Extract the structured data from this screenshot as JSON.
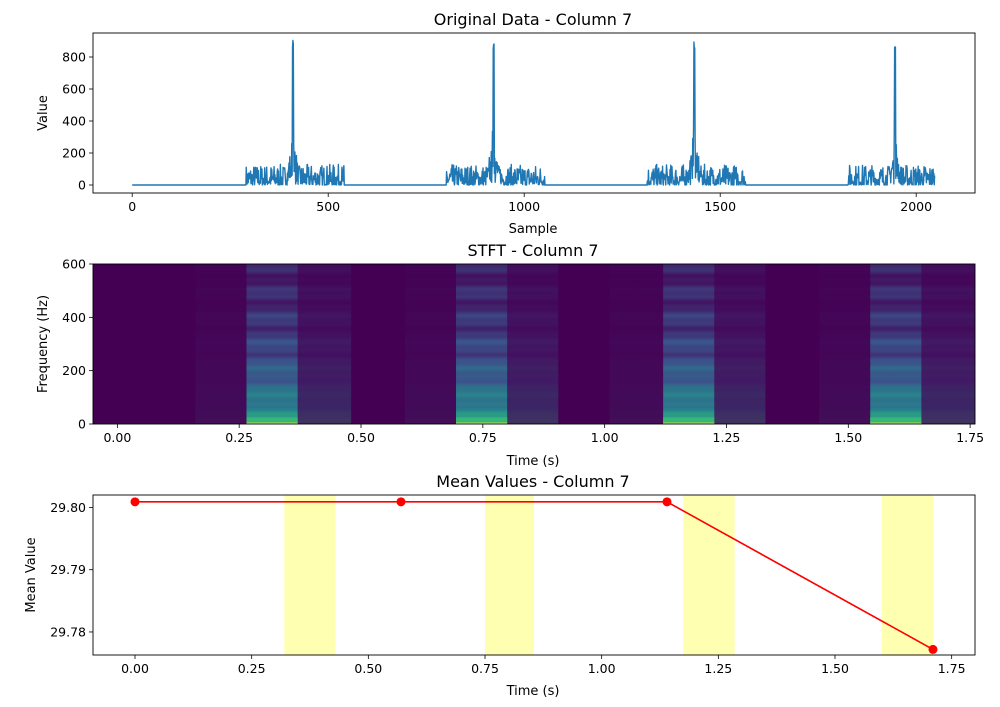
{
  "chart_data": [
    {
      "type": "line",
      "title": "Original Data - Column 7",
      "xlabel": "Sample",
      "ylabel": "Value",
      "xlim": [
        -100,
        2150
      ],
      "ylim": [
        -50,
        950
      ],
      "xticks": [
        0,
        500,
        1000,
        1500,
        2000
      ],
      "yticks": [
        0,
        200,
        400,
        600,
        800
      ],
      "grid": false,
      "color": "#1f77b4",
      "n_samples": 2048,
      "cycle_length": 512,
      "bursts": [
        {
          "start": 290,
          "peak": 410,
          "end": 540,
          "peak_value": 905
        },
        {
          "start": 802,
          "peak": 922,
          "end": 1052,
          "peak_value": 905
        },
        {
          "start": 1314,
          "peak": 1434,
          "end": 1564,
          "peak_value": 905
        },
        {
          "start": 1826,
          "peak": 1946,
          "end": 2048,
          "peak_value": 905
        }
      ]
    },
    {
      "type": "heatmap",
      "title": "STFT - Column 7",
      "xlabel": "Time (s)",
      "ylabel": "Frequency (Hz)",
      "xlim": [
        -0.05,
        1.76
      ],
      "ylim": [
        0,
        600
      ],
      "xticks": [
        "0.00",
        "0.25",
        "0.50",
        "0.75",
        "1.00",
        "1.25",
        "1.50",
        "1.75"
      ],
      "yticks": [
        0,
        200,
        400,
        600
      ],
      "colormap": "viridis",
      "time_columns": [
        {
          "t0": -0.05,
          "t1": 0.16,
          "level": 0.0
        },
        {
          "t0": 0.16,
          "t1": 0.265,
          "level": 0.08
        },
        {
          "t0": 0.265,
          "t1": 0.37,
          "level": 1.0
        },
        {
          "t0": 0.37,
          "t1": 0.48,
          "level": 0.3
        },
        {
          "t0": 0.48,
          "t1": 0.59,
          "level": 0.0
        },
        {
          "t0": 0.59,
          "t1": 0.695,
          "level": 0.08
        },
        {
          "t0": 0.695,
          "t1": 0.8,
          "level": 1.0
        },
        {
          "t0": 0.8,
          "t1": 0.905,
          "level": 0.3
        },
        {
          "t0": 0.905,
          "t1": 1.01,
          "level": 0.0
        },
        {
          "t0": 1.01,
          "t1": 1.12,
          "level": 0.08
        },
        {
          "t0": 1.12,
          "t1": 1.225,
          "level": 1.0
        },
        {
          "t0": 1.225,
          "t1": 1.33,
          "level": 0.3
        },
        {
          "t0": 1.33,
          "t1": 1.44,
          "level": 0.0
        },
        {
          "t0": 1.44,
          "t1": 1.545,
          "level": 0.08
        },
        {
          "t0": 1.545,
          "t1": 1.65,
          "level": 1.0
        },
        {
          "t0": 1.65,
          "t1": 1.76,
          "level": 0.3
        }
      ]
    },
    {
      "type": "line",
      "title": "Mean Values - Column 7",
      "xlabel": "Time (s)",
      "ylabel": "Mean Value",
      "xlim": [
        -0.09,
        1.8
      ],
      "ylim": [
        29.7763,
        29.802
      ],
      "xticks": [
        "0.00",
        "0.25",
        "0.50",
        "0.75",
        "1.00",
        "1.25",
        "1.50",
        "1.75"
      ],
      "yticks": [
        "29.78",
        "29.79",
        "29.80"
      ],
      "color": "#ff0000",
      "x": [
        0.0,
        0.57,
        1.14,
        1.71
      ],
      "y": [
        29.8009,
        29.8009,
        29.8009,
        29.7772
      ],
      "highlight_color": "#ffff00",
      "highlight_spans": [
        [
          0.32,
          0.43
        ],
        [
          0.75,
          0.855
        ],
        [
          1.175,
          1.285
        ],
        [
          1.6,
          1.71
        ]
      ]
    }
  ]
}
